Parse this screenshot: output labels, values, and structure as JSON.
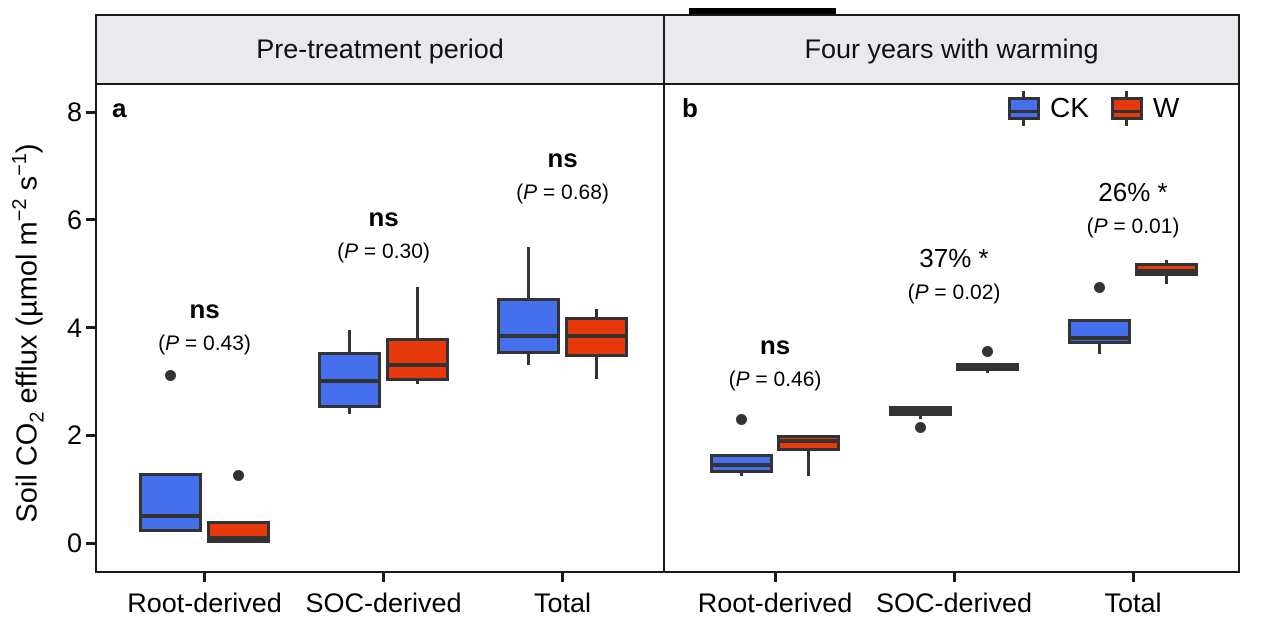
{
  "colors": {
    "ck_fill": "#4470ee",
    "w_fill": "#e8390c",
    "box_border": "#333333",
    "header_bg": "#e9e9ee",
    "panel_border": "#1a1a1a",
    "outlier": "#333333"
  },
  "chart_data": {
    "type": "boxplot",
    "title": "",
    "ylabel_plain": "Soil CO2 efflux (umol m-2 s-1)",
    "ylabel_parts": [
      {
        "t": "Soil CO"
      },
      {
        "t": "2",
        "style": "sub"
      },
      {
        "t": " efflux (µmol m"
      },
      {
        "t": "−2",
        "style": "sup"
      },
      {
        "t": " s"
      },
      {
        "t": "−1",
        "style": "sup"
      },
      {
        "t": ")"
      }
    ],
    "ylim": [
      -0.6,
      8.6
    ],
    "yticks": [
      0,
      2,
      4,
      6,
      8
    ],
    "grid": "off",
    "legend_position": "top-right-of-panel-b",
    "categories": [
      "Root-derived",
      "SOC-derived",
      "Total"
    ],
    "series": [
      {
        "name": "CK",
        "color": "#4470ee"
      },
      {
        "name": "W",
        "color": "#e8390c"
      }
    ],
    "panels": [
      {
        "letter": "a",
        "title": "Pre-treatment period",
        "annotations": [
          {
            "label": "ns",
            "p": "(P = 0.43)",
            "y": 4.34
          },
          {
            "label": "ns",
            "p": "(P = 0.30)",
            "y": 6.05
          },
          {
            "label": "ns",
            "p": "(P = 0.68)",
            "y": 7.15
          }
        ],
        "groups": [
          {
            "category": "Root-derived",
            "CK": {
              "low": 0.2,
              "q1": 0.2,
              "median": 0.5,
              "q3": 1.3,
              "high": 1.3,
              "outliers": [
                3.1
              ]
            },
            "W": {
              "low": 0.0,
              "q1": 0.0,
              "median": 0.1,
              "q3": 0.4,
              "high": 0.4,
              "outliers": [
                1.25
              ]
            }
          },
          {
            "category": "SOC-derived",
            "CK": {
              "low": 2.4,
              "q1": 2.5,
              "median": 3.0,
              "q3": 3.55,
              "high": 3.95,
              "outliers": []
            },
            "W": {
              "low": 2.95,
              "q1": 3.0,
              "median": 3.3,
              "q3": 3.8,
              "high": 4.75,
              "outliers": []
            }
          },
          {
            "category": "Total",
            "CK": {
              "low": 3.3,
              "q1": 3.5,
              "median": 3.85,
              "q3": 4.55,
              "high": 5.5,
              "outliers": []
            },
            "W": {
              "low": 3.05,
              "q1": 3.45,
              "median": 3.85,
              "q3": 4.2,
              "high": 4.35,
              "outliers": []
            }
          }
        ]
      },
      {
        "letter": "b",
        "title": "Four years with warming",
        "annotations": [
          {
            "label": "ns",
            "p": "(P = 0.46)",
            "y": 3.67
          },
          {
            "label": "37% *",
            "p": "(P = 0.02)",
            "y": 5.29
          },
          {
            "label": "26% *",
            "p": "(P = 0.01)",
            "y": 6.51
          }
        ],
        "groups": [
          {
            "category": "Root-derived",
            "CK": {
              "low": 1.25,
              "q1": 1.3,
              "median": 1.45,
              "q3": 1.65,
              "high": 1.65,
              "outliers": [
                2.3
              ]
            },
            "W": {
              "low": 1.25,
              "q1": 1.7,
              "median": 1.9,
              "q3": 2.0,
              "high": 2.0,
              "outliers": []
            }
          },
          {
            "category": "SOC-derived",
            "CK": {
              "low": 2.3,
              "q1": 2.35,
              "median": 2.45,
              "q3": 2.55,
              "high": 2.55,
              "outliers": [
                2.15
              ]
            },
            "W": {
              "low": 3.15,
              "q1": 3.2,
              "median": 3.25,
              "q3": 3.35,
              "high": 3.35,
              "outliers": [
                3.55
              ]
            }
          },
          {
            "category": "Total",
            "CK": {
              "low": 3.5,
              "q1": 3.7,
              "median": 3.8,
              "q3": 4.15,
              "high": 4.15,
              "outliers": [
                4.75
              ]
            },
            "W": {
              "low": 4.8,
              "q1": 4.95,
              "median": 5.05,
              "q3": 5.2,
              "high": 5.25,
              "outliers": []
            }
          }
        ]
      }
    ],
    "legend": {
      "items": [
        {
          "label": "CK",
          "color": "#4470ee"
        },
        {
          "label": "W",
          "color": "#e8390c"
        }
      ]
    }
  }
}
